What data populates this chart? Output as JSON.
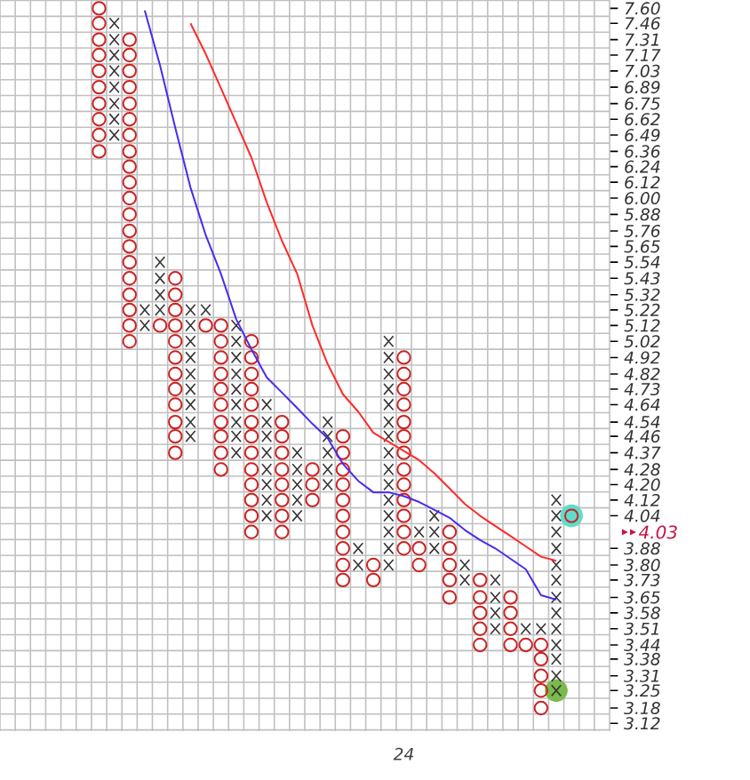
{
  "chart_data": {
    "type": "scatter",
    "categories": [
      null,
      null,
      null,
      null,
      null,
      null,
      null,
      null,
      null,
      null,
      null,
      null,
      null,
      null,
      null,
      null,
      null,
      null,
      null,
      null,
      null,
      null,
      null,
      null,
      null,
      null,
      "24",
      null,
      null,
      null,
      null,
      null,
      null,
      null,
      null,
      null,
      null,
      null,
      null,
      null
    ],
    "ylim": [
      3.09,
      7.68
    ],
    "log": "y",
    "grid": true,
    "yticks": [
      {
        "value": 7.6,
        "label": "7.60"
      },
      {
        "value": 7.46,
        "label": "7.46"
      },
      {
        "value": 7.31,
        "label": "7.31"
      },
      {
        "value": 7.17,
        "label": "7.17"
      },
      {
        "value": 7.03,
        "label": "7.03"
      },
      {
        "value": 6.89,
        "label": "6.89"
      },
      {
        "value": 6.75,
        "label": "6.75"
      },
      {
        "value": 6.62,
        "label": "6.62"
      },
      {
        "value": 6.49,
        "label": "6.49"
      },
      {
        "value": 6.36,
        "label": "6.36"
      },
      {
        "value": 6.24,
        "label": "6.24"
      },
      {
        "value": 6.12,
        "label": "6.12"
      },
      {
        "value": 6.0,
        "label": "6.00"
      },
      {
        "value": 5.88,
        "label": "5.88"
      },
      {
        "value": 5.76,
        "label": "5.76"
      },
      {
        "value": 5.65,
        "label": "5.65"
      },
      {
        "value": 5.54,
        "label": "5.54"
      },
      {
        "value": 5.43,
        "label": "5.43"
      },
      {
        "value": 5.32,
        "label": "5.32"
      },
      {
        "value": 5.22,
        "label": "5.22"
      },
      {
        "value": 5.12,
        "label": "5.12"
      },
      {
        "value": 5.02,
        "label": "5.02"
      },
      {
        "value": 4.92,
        "label": "4.92"
      },
      {
        "value": 4.82,
        "label": "4.82"
      },
      {
        "value": 4.73,
        "label": "4.73"
      },
      {
        "value": 4.64,
        "label": "4.64"
      },
      {
        "value": 4.54,
        "label": "4.54"
      },
      {
        "value": 4.46,
        "label": "4.46"
      },
      {
        "value": 4.37,
        "label": "4.37"
      },
      {
        "value": 4.28,
        "label": "4.28"
      },
      {
        "value": 4.2,
        "label": "4.20"
      },
      {
        "value": 4.12,
        "label": "4.12"
      },
      {
        "value": 4.04,
        "label": "4.04"
      },
      {
        "value": 3.88,
        "label": "3.88"
      },
      {
        "value": 3.8,
        "label": "3.80"
      },
      {
        "value": 3.73,
        "label": "3.73"
      },
      {
        "value": 3.65,
        "label": "3.65"
      },
      {
        "value": 3.58,
        "label": "3.58"
      },
      {
        "value": 3.51,
        "label": "3.51"
      },
      {
        "value": 3.44,
        "label": "3.44"
      },
      {
        "value": 3.38,
        "label": "3.38"
      },
      {
        "value": 3.31,
        "label": "3.31"
      },
      {
        "value": 3.25,
        "label": "3.25"
      },
      {
        "value": 3.18,
        "label": "3.18"
      },
      {
        "value": 3.12,
        "label": "3.12"
      }
    ],
    "annotations": [
      "4.03"
    ],
    "series": [
      {
        "type": "bubble",
        "color": "#5fdccb",
        "values": [
          null,
          null,
          null,
          null,
          null,
          null,
          null,
          null,
          null,
          null,
          null,
          null,
          null,
          null,
          null,
          null,
          null,
          null,
          null,
          null,
          null,
          null,
          null,
          null,
          null,
          null,
          null,
          null,
          null,
          null,
          null,
          null,
          null,
          null,
          null,
          null,
          null,
          4.04,
          null,
          null
        ],
        "sizes": [
          null,
          null,
          null,
          null,
          null,
          null,
          null,
          null,
          null,
          null,
          null,
          null,
          null,
          null,
          null,
          null,
          null,
          null,
          null,
          null,
          null,
          null,
          null,
          null,
          null,
          null,
          null,
          null,
          null,
          null,
          null,
          null,
          null,
          null,
          null,
          null,
          null,
          1,
          null,
          null
        ]
      },
      {
        "type": "bubble",
        "color": "#7cba4e",
        "values": [
          null,
          null,
          null,
          null,
          null,
          null,
          null,
          null,
          null,
          null,
          null,
          null,
          null,
          null,
          null,
          null,
          null,
          null,
          null,
          null,
          null,
          null,
          null,
          null,
          null,
          null,
          null,
          null,
          null,
          null,
          null,
          null,
          null,
          null,
          null,
          null,
          3.25,
          null,
          null,
          null
        ],
        "sizes": [
          null,
          null,
          null,
          null,
          null,
          null,
          null,
          null,
          null,
          null,
          null,
          null,
          null,
          null,
          null,
          null,
          null,
          null,
          null,
          null,
          null,
          null,
          null,
          null,
          null,
          null,
          null,
          null,
          null,
          null,
          null,
          null,
          null,
          null,
          null,
          null,
          1,
          null,
          null,
          null
        ]
      },
      {
        "marker": "cross",
        "color": "#333333",
        "values": [
          null,
          null,
          null,
          null,
          null,
          null,
          null,
          7.46,
          null,
          5.22,
          5.54,
          null,
          5.22,
          5.22,
          null,
          5.12,
          null,
          4.64,
          null,
          4.37,
          null,
          4.54,
          null,
          3.88,
          null,
          5.02,
          null,
          3.96,
          4.04,
          null,
          3.8,
          null,
          3.73,
          null,
          3.51,
          3.51,
          4.12,
          null,
          null,
          null
        ]
      },
      {
        "marker": "cross",
        "color": "#333333",
        "values": [
          null,
          null,
          null,
          null,
          null,
          null,
          null,
          7.31,
          null,
          5.12,
          5.43,
          null,
          5.12,
          null,
          null,
          5.02,
          null,
          4.54,
          null,
          4.28,
          null,
          4.46,
          null,
          3.8,
          null,
          4.92,
          null,
          null,
          3.96,
          null,
          3.73,
          null,
          3.65,
          null,
          null,
          null,
          4.04,
          null,
          null,
          null
        ]
      },
      {
        "marker": "cross",
        "color": "#333333",
        "values": [
          null,
          null,
          null,
          null,
          null,
          null,
          null,
          7.17,
          null,
          null,
          5.32,
          null,
          5.02,
          null,
          null,
          4.92,
          null,
          4.46,
          null,
          4.2,
          null,
          4.37,
          null,
          null,
          null,
          4.82,
          null,
          null,
          3.88,
          null,
          null,
          null,
          3.58,
          null,
          null,
          null,
          3.96,
          null,
          null,
          null
        ]
      },
      {
        "marker": "cross",
        "color": "#333333",
        "values": [
          null,
          null,
          null,
          null,
          null,
          null,
          null,
          7.03,
          null,
          null,
          5.22,
          null,
          4.92,
          null,
          null,
          4.82,
          null,
          4.37,
          null,
          4.12,
          null,
          4.28,
          null,
          null,
          null,
          4.73,
          null,
          null,
          null,
          null,
          null,
          null,
          3.51,
          null,
          null,
          null,
          3.88,
          null,
          null,
          null
        ]
      },
      {
        "marker": "cross",
        "color": "#333333",
        "values": [
          null,
          null,
          null,
          null,
          null,
          null,
          null,
          6.89,
          null,
          null,
          null,
          null,
          4.82,
          null,
          null,
          4.73,
          null,
          4.28,
          null,
          4.04,
          null,
          4.2,
          null,
          null,
          null,
          4.64,
          null,
          null,
          null,
          null,
          null,
          null,
          null,
          null,
          null,
          null,
          3.8,
          null,
          null,
          null
        ]
      },
      {
        "marker": "cross",
        "color": "#333333",
        "values": [
          null,
          null,
          null,
          null,
          null,
          null,
          null,
          6.75,
          null,
          null,
          null,
          null,
          4.73,
          null,
          null,
          4.64,
          null,
          4.2,
          null,
          null,
          null,
          null,
          null,
          null,
          null,
          4.54,
          null,
          null,
          null,
          null,
          null,
          null,
          null,
          null,
          null,
          null,
          3.73,
          null,
          null,
          null
        ]
      },
      {
        "marker": "cross",
        "color": "#333333",
        "values": [
          null,
          null,
          null,
          null,
          null,
          null,
          null,
          6.62,
          null,
          null,
          null,
          null,
          4.64,
          null,
          null,
          4.54,
          null,
          4.12,
          null,
          null,
          null,
          null,
          null,
          null,
          null,
          4.46,
          null,
          null,
          null,
          null,
          null,
          null,
          null,
          null,
          null,
          null,
          3.65,
          null,
          null,
          null
        ]
      },
      {
        "marker": "cross",
        "color": "#333333",
        "values": [
          null,
          null,
          null,
          null,
          null,
          null,
          null,
          6.49,
          null,
          null,
          null,
          null,
          4.54,
          null,
          null,
          4.46,
          null,
          4.04,
          null,
          null,
          null,
          null,
          null,
          null,
          null,
          4.37,
          null,
          null,
          null,
          null,
          null,
          null,
          null,
          null,
          null,
          null,
          3.58,
          null,
          null,
          null
        ]
      },
      {
        "marker": "cross",
        "color": "#333333",
        "values": [
          null,
          null,
          null,
          null,
          null,
          null,
          null,
          null,
          null,
          null,
          null,
          null,
          4.46,
          null,
          null,
          4.37,
          null,
          null,
          null,
          null,
          null,
          null,
          null,
          null,
          null,
          4.28,
          null,
          null,
          null,
          null,
          null,
          null,
          null,
          null,
          null,
          null,
          3.51,
          null,
          null,
          null
        ]
      },
      {
        "marker": "cross",
        "color": "#333333",
        "values": [
          null,
          null,
          null,
          null,
          null,
          null,
          null,
          null,
          null,
          null,
          null,
          null,
          null,
          null,
          null,
          null,
          null,
          null,
          null,
          null,
          null,
          null,
          null,
          null,
          null,
          4.2,
          null,
          null,
          null,
          null,
          null,
          null,
          null,
          null,
          null,
          null,
          3.44,
          null,
          null,
          null
        ]
      },
      {
        "marker": "cross",
        "color": "#333333",
        "values": [
          null,
          null,
          null,
          null,
          null,
          null,
          null,
          null,
          null,
          null,
          null,
          null,
          null,
          null,
          null,
          null,
          null,
          null,
          null,
          null,
          null,
          null,
          null,
          null,
          null,
          4.12,
          null,
          null,
          null,
          null,
          null,
          null,
          null,
          null,
          null,
          null,
          3.38,
          null,
          null,
          null
        ]
      },
      {
        "marker": "cross",
        "color": "#333333",
        "values": [
          null,
          null,
          null,
          null,
          null,
          null,
          null,
          null,
          null,
          null,
          null,
          null,
          null,
          null,
          null,
          null,
          null,
          null,
          null,
          null,
          null,
          null,
          null,
          null,
          null,
          4.04,
          null,
          null,
          null,
          null,
          null,
          null,
          null,
          null,
          null,
          null,
          3.31,
          null,
          null,
          null
        ]
      },
      {
        "marker": "cross",
        "color": "#333333",
        "values": [
          null,
          null,
          null,
          null,
          null,
          null,
          null,
          null,
          null,
          null,
          null,
          null,
          null,
          null,
          null,
          null,
          null,
          null,
          null,
          null,
          null,
          null,
          null,
          null,
          null,
          3.96,
          null,
          null,
          null,
          null,
          null,
          null,
          null,
          null,
          null,
          null,
          3.25,
          null,
          null,
          null
        ]
      },
      {
        "marker": "cross",
        "color": "#333333",
        "values": [
          null,
          null,
          null,
          null,
          null,
          null,
          null,
          null,
          null,
          null,
          null,
          null,
          null,
          null,
          null,
          null,
          null,
          null,
          null,
          null,
          null,
          null,
          null,
          null,
          null,
          3.88,
          null,
          null,
          null,
          null,
          null,
          null,
          null,
          null,
          null,
          null,
          null,
          null,
          null,
          null
        ]
      },
      {
        "marker": "cross",
        "color": "#333333",
        "values": [
          null,
          null,
          null,
          null,
          null,
          null,
          null,
          null,
          null,
          null,
          null,
          null,
          null,
          null,
          null,
          null,
          null,
          null,
          null,
          null,
          null,
          null,
          null,
          null,
          null,
          3.8,
          null,
          null,
          null,
          null,
          null,
          null,
          null,
          null,
          null,
          null,
          null,
          null,
          null,
          null
        ]
      },
      {
        "marker": "circle",
        "color": "#cc2222",
        "values": [
          null,
          null,
          null,
          null,
          null,
          null,
          7.6,
          null,
          7.31,
          null,
          5.12,
          5.43,
          null,
          5.12,
          5.12,
          null,
          5.02,
          null,
          4.54,
          null,
          4.28,
          null,
          4.46,
          null,
          3.8,
          null,
          4.92,
          3.88,
          null,
          3.96,
          null,
          3.73,
          null,
          3.65,
          3.44,
          3.44,
          null,
          4.04,
          null,
          null
        ]
      },
      {
        "marker": "circle",
        "color": "#cc2222",
        "values": [
          null,
          null,
          null,
          null,
          null,
          null,
          7.46,
          null,
          7.17,
          null,
          null,
          5.32,
          null,
          null,
          5.02,
          null,
          4.92,
          null,
          4.46,
          null,
          4.2,
          null,
          4.37,
          null,
          3.73,
          null,
          4.82,
          3.8,
          null,
          3.88,
          null,
          3.65,
          null,
          3.58,
          null,
          3.38,
          null,
          null,
          null,
          null
        ]
      },
      {
        "marker": "circle",
        "color": "#cc2222",
        "values": [
          null,
          null,
          null,
          null,
          null,
          null,
          7.31,
          null,
          7.03,
          null,
          null,
          5.22,
          null,
          null,
          4.92,
          null,
          4.82,
          null,
          4.37,
          null,
          4.12,
          null,
          4.28,
          null,
          null,
          null,
          4.73,
          null,
          null,
          3.8,
          null,
          3.58,
          null,
          3.51,
          null,
          3.31,
          null,
          null,
          null,
          null
        ]
      },
      {
        "marker": "circle",
        "color": "#cc2222",
        "values": [
          null,
          null,
          null,
          null,
          null,
          null,
          7.17,
          null,
          6.89,
          null,
          null,
          5.12,
          null,
          null,
          4.82,
          null,
          4.73,
          null,
          4.28,
          null,
          null,
          null,
          4.2,
          null,
          null,
          null,
          4.64,
          null,
          null,
          3.73,
          null,
          3.51,
          null,
          3.44,
          null,
          3.25,
          null,
          null,
          null,
          null
        ]
      },
      {
        "marker": "circle",
        "color": "#cc2222",
        "values": [
          null,
          null,
          null,
          null,
          null,
          null,
          7.03,
          null,
          6.75,
          null,
          null,
          5.02,
          null,
          null,
          4.73,
          null,
          4.64,
          null,
          4.2,
          null,
          null,
          null,
          4.12,
          null,
          null,
          null,
          4.54,
          null,
          null,
          3.65,
          null,
          3.44,
          null,
          null,
          null,
          3.18,
          null,
          null,
          null,
          null
        ]
      },
      {
        "marker": "circle",
        "color": "#cc2222",
        "values": [
          null,
          null,
          null,
          null,
          null,
          null,
          6.89,
          null,
          6.62,
          null,
          null,
          4.92,
          null,
          null,
          4.64,
          null,
          4.54,
          null,
          4.12,
          null,
          null,
          null,
          4.04,
          null,
          null,
          null,
          4.46,
          null,
          null,
          null,
          null,
          null,
          null,
          null,
          null,
          null,
          null,
          null,
          null,
          null
        ]
      },
      {
        "marker": "circle",
        "color": "#cc2222",
        "values": [
          null,
          null,
          null,
          null,
          null,
          null,
          6.75,
          null,
          6.49,
          null,
          null,
          4.82,
          null,
          null,
          4.54,
          null,
          4.46,
          null,
          4.04,
          null,
          null,
          null,
          3.96,
          null,
          null,
          null,
          4.37,
          null,
          null,
          null,
          null,
          null,
          null,
          null,
          null,
          null,
          null,
          null,
          null,
          null
        ]
      },
      {
        "marker": "circle",
        "color": "#cc2222",
        "values": [
          null,
          null,
          null,
          null,
          null,
          null,
          6.62,
          null,
          6.36,
          null,
          null,
          4.73,
          null,
          null,
          4.46,
          null,
          4.37,
          null,
          3.96,
          null,
          null,
          null,
          3.88,
          null,
          null,
          null,
          4.28,
          null,
          null,
          null,
          null,
          null,
          null,
          null,
          null,
          null,
          null,
          null,
          null,
          null
        ]
      },
      {
        "marker": "circle",
        "color": "#cc2222",
        "values": [
          null,
          null,
          null,
          null,
          null,
          null,
          6.49,
          null,
          6.24,
          null,
          null,
          4.64,
          null,
          null,
          4.37,
          null,
          4.28,
          null,
          null,
          null,
          null,
          null,
          3.8,
          null,
          null,
          null,
          4.2,
          null,
          null,
          null,
          null,
          null,
          null,
          null,
          null,
          null,
          null,
          null,
          null,
          null
        ]
      },
      {
        "marker": "circle",
        "color": "#cc2222",
        "values": [
          null,
          null,
          null,
          null,
          null,
          null,
          6.36,
          null,
          6.12,
          null,
          null,
          4.54,
          null,
          null,
          4.28,
          null,
          4.2,
          null,
          null,
          null,
          null,
          null,
          3.73,
          null,
          null,
          null,
          4.12,
          null,
          null,
          null,
          null,
          null,
          null,
          null,
          null,
          null,
          null,
          null,
          null,
          null
        ]
      },
      {
        "marker": "circle",
        "color": "#cc2222",
        "values": [
          null,
          null,
          null,
          null,
          null,
          null,
          null,
          null,
          6.0,
          null,
          null,
          4.46,
          null,
          null,
          null,
          null,
          4.12,
          null,
          null,
          null,
          null,
          null,
          null,
          null,
          null,
          null,
          4.04,
          null,
          null,
          null,
          null,
          null,
          null,
          null,
          null,
          null,
          null,
          null,
          null,
          null
        ]
      },
      {
        "marker": "circle",
        "color": "#cc2222",
        "values": [
          null,
          null,
          null,
          null,
          null,
          null,
          null,
          null,
          5.88,
          null,
          null,
          4.37,
          null,
          null,
          null,
          null,
          4.04,
          null,
          null,
          null,
          null,
          null,
          null,
          null,
          null,
          null,
          3.96,
          null,
          null,
          null,
          null,
          null,
          null,
          null,
          null,
          null,
          null,
          null,
          null,
          null
        ]
      },
      {
        "marker": "circle",
        "color": "#cc2222",
        "values": [
          null,
          null,
          null,
          null,
          null,
          null,
          null,
          null,
          5.76,
          null,
          null,
          null,
          null,
          null,
          null,
          null,
          3.96,
          null,
          null,
          null,
          null,
          null,
          null,
          null,
          null,
          null,
          3.88,
          null,
          null,
          null,
          null,
          null,
          null,
          null,
          null,
          null,
          null,
          null,
          null,
          null
        ]
      },
      {
        "marker": "circle",
        "color": "#cc2222",
        "values": [
          null,
          null,
          null,
          null,
          null,
          null,
          null,
          null,
          5.65,
          null,
          null,
          null,
          null,
          null,
          null,
          null,
          null,
          null,
          null,
          null,
          null,
          null,
          null,
          null,
          null,
          null,
          null,
          null,
          null,
          null,
          null,
          null,
          null,
          null,
          null,
          null,
          null,
          null,
          null,
          null
        ]
      },
      {
        "marker": "circle",
        "color": "#cc2222",
        "values": [
          null,
          null,
          null,
          null,
          null,
          null,
          null,
          null,
          5.54,
          null,
          null,
          null,
          null,
          null,
          null,
          null,
          null,
          null,
          null,
          null,
          null,
          null,
          null,
          null,
          null,
          null,
          null,
          null,
          null,
          null,
          null,
          null,
          null,
          null,
          null,
          null,
          null,
          null,
          null,
          null
        ]
      },
      {
        "marker": "circle",
        "color": "#cc2222",
        "values": [
          null,
          null,
          null,
          null,
          null,
          null,
          null,
          null,
          5.43,
          null,
          null,
          null,
          null,
          null,
          null,
          null,
          null,
          null,
          null,
          null,
          null,
          null,
          null,
          null,
          null,
          null,
          null,
          null,
          null,
          null,
          null,
          null,
          null,
          null,
          null,
          null,
          null,
          null,
          null,
          null
        ]
      },
      {
        "marker": "circle",
        "color": "#cc2222",
        "values": [
          null,
          null,
          null,
          null,
          null,
          null,
          null,
          null,
          5.32,
          null,
          null,
          null,
          null,
          null,
          null,
          null,
          null,
          null,
          null,
          null,
          null,
          null,
          null,
          null,
          null,
          null,
          null,
          null,
          null,
          null,
          null,
          null,
          null,
          null,
          null,
          null,
          null,
          null,
          null,
          null
        ]
      },
      {
        "marker": "circle",
        "color": "#cc2222",
        "values": [
          null,
          null,
          null,
          null,
          null,
          null,
          null,
          null,
          5.22,
          null,
          null,
          null,
          null,
          null,
          null,
          null,
          null,
          null,
          null,
          null,
          null,
          null,
          null,
          null,
          null,
          null,
          null,
          null,
          null,
          null,
          null,
          null,
          null,
          null,
          null,
          null,
          null,
          null,
          null,
          null
        ]
      },
      {
        "marker": "circle",
        "color": "#cc2222",
        "values": [
          null,
          null,
          null,
          null,
          null,
          null,
          null,
          null,
          5.12,
          null,
          null,
          null,
          null,
          null,
          null,
          null,
          null,
          null,
          null,
          null,
          null,
          null,
          null,
          null,
          null,
          null,
          null,
          null,
          null,
          null,
          null,
          null,
          null,
          null,
          null,
          null,
          null,
          null,
          null,
          null
        ]
      },
      {
        "marker": "circle",
        "color": "#cc2222",
        "values": [
          null,
          null,
          null,
          null,
          null,
          null,
          null,
          null,
          5.02,
          null,
          null,
          null,
          null,
          null,
          null,
          null,
          null,
          null,
          null,
          null,
          null,
          null,
          null,
          null,
          null,
          null,
          null,
          null,
          null,
          null,
          null,
          null,
          null,
          null,
          null,
          null,
          null,
          null,
          null,
          null
        ]
      },
      {
        "type": "line",
        "marker": "none",
        "color": "#4a2af0",
        "values": [
          null,
          null,
          null,
          null,
          null,
          null,
          null,
          null,
          null,
          7.58,
          7.08,
          6.55,
          6.08,
          5.73,
          5.46,
          5.16,
          4.97,
          4.8,
          4.71,
          4.62,
          4.53,
          4.45,
          4.31,
          4.22,
          4.16,
          4.16,
          4.14,
          4.11,
          4.07,
          4.03,
          3.97,
          3.92,
          3.88,
          3.83,
          3.78,
          3.66,
          3.64,
          null,
          null,
          null
        ]
      },
      {
        "type": "line",
        "marker": "none",
        "color": "#ff2a2a",
        "values": [
          null,
          null,
          null,
          null,
          null,
          null,
          null,
          null,
          null,
          null,
          null,
          null,
          7.46,
          7.18,
          6.88,
          6.59,
          6.31,
          5.97,
          5.69,
          5.46,
          5.12,
          4.88,
          4.7,
          4.6,
          4.48,
          4.43,
          4.38,
          4.33,
          4.26,
          4.18,
          4.1,
          4.04,
          3.99,
          3.94,
          3.89,
          3.84,
          3.82,
          null,
          null,
          null
        ]
      }
    ]
  }
}
